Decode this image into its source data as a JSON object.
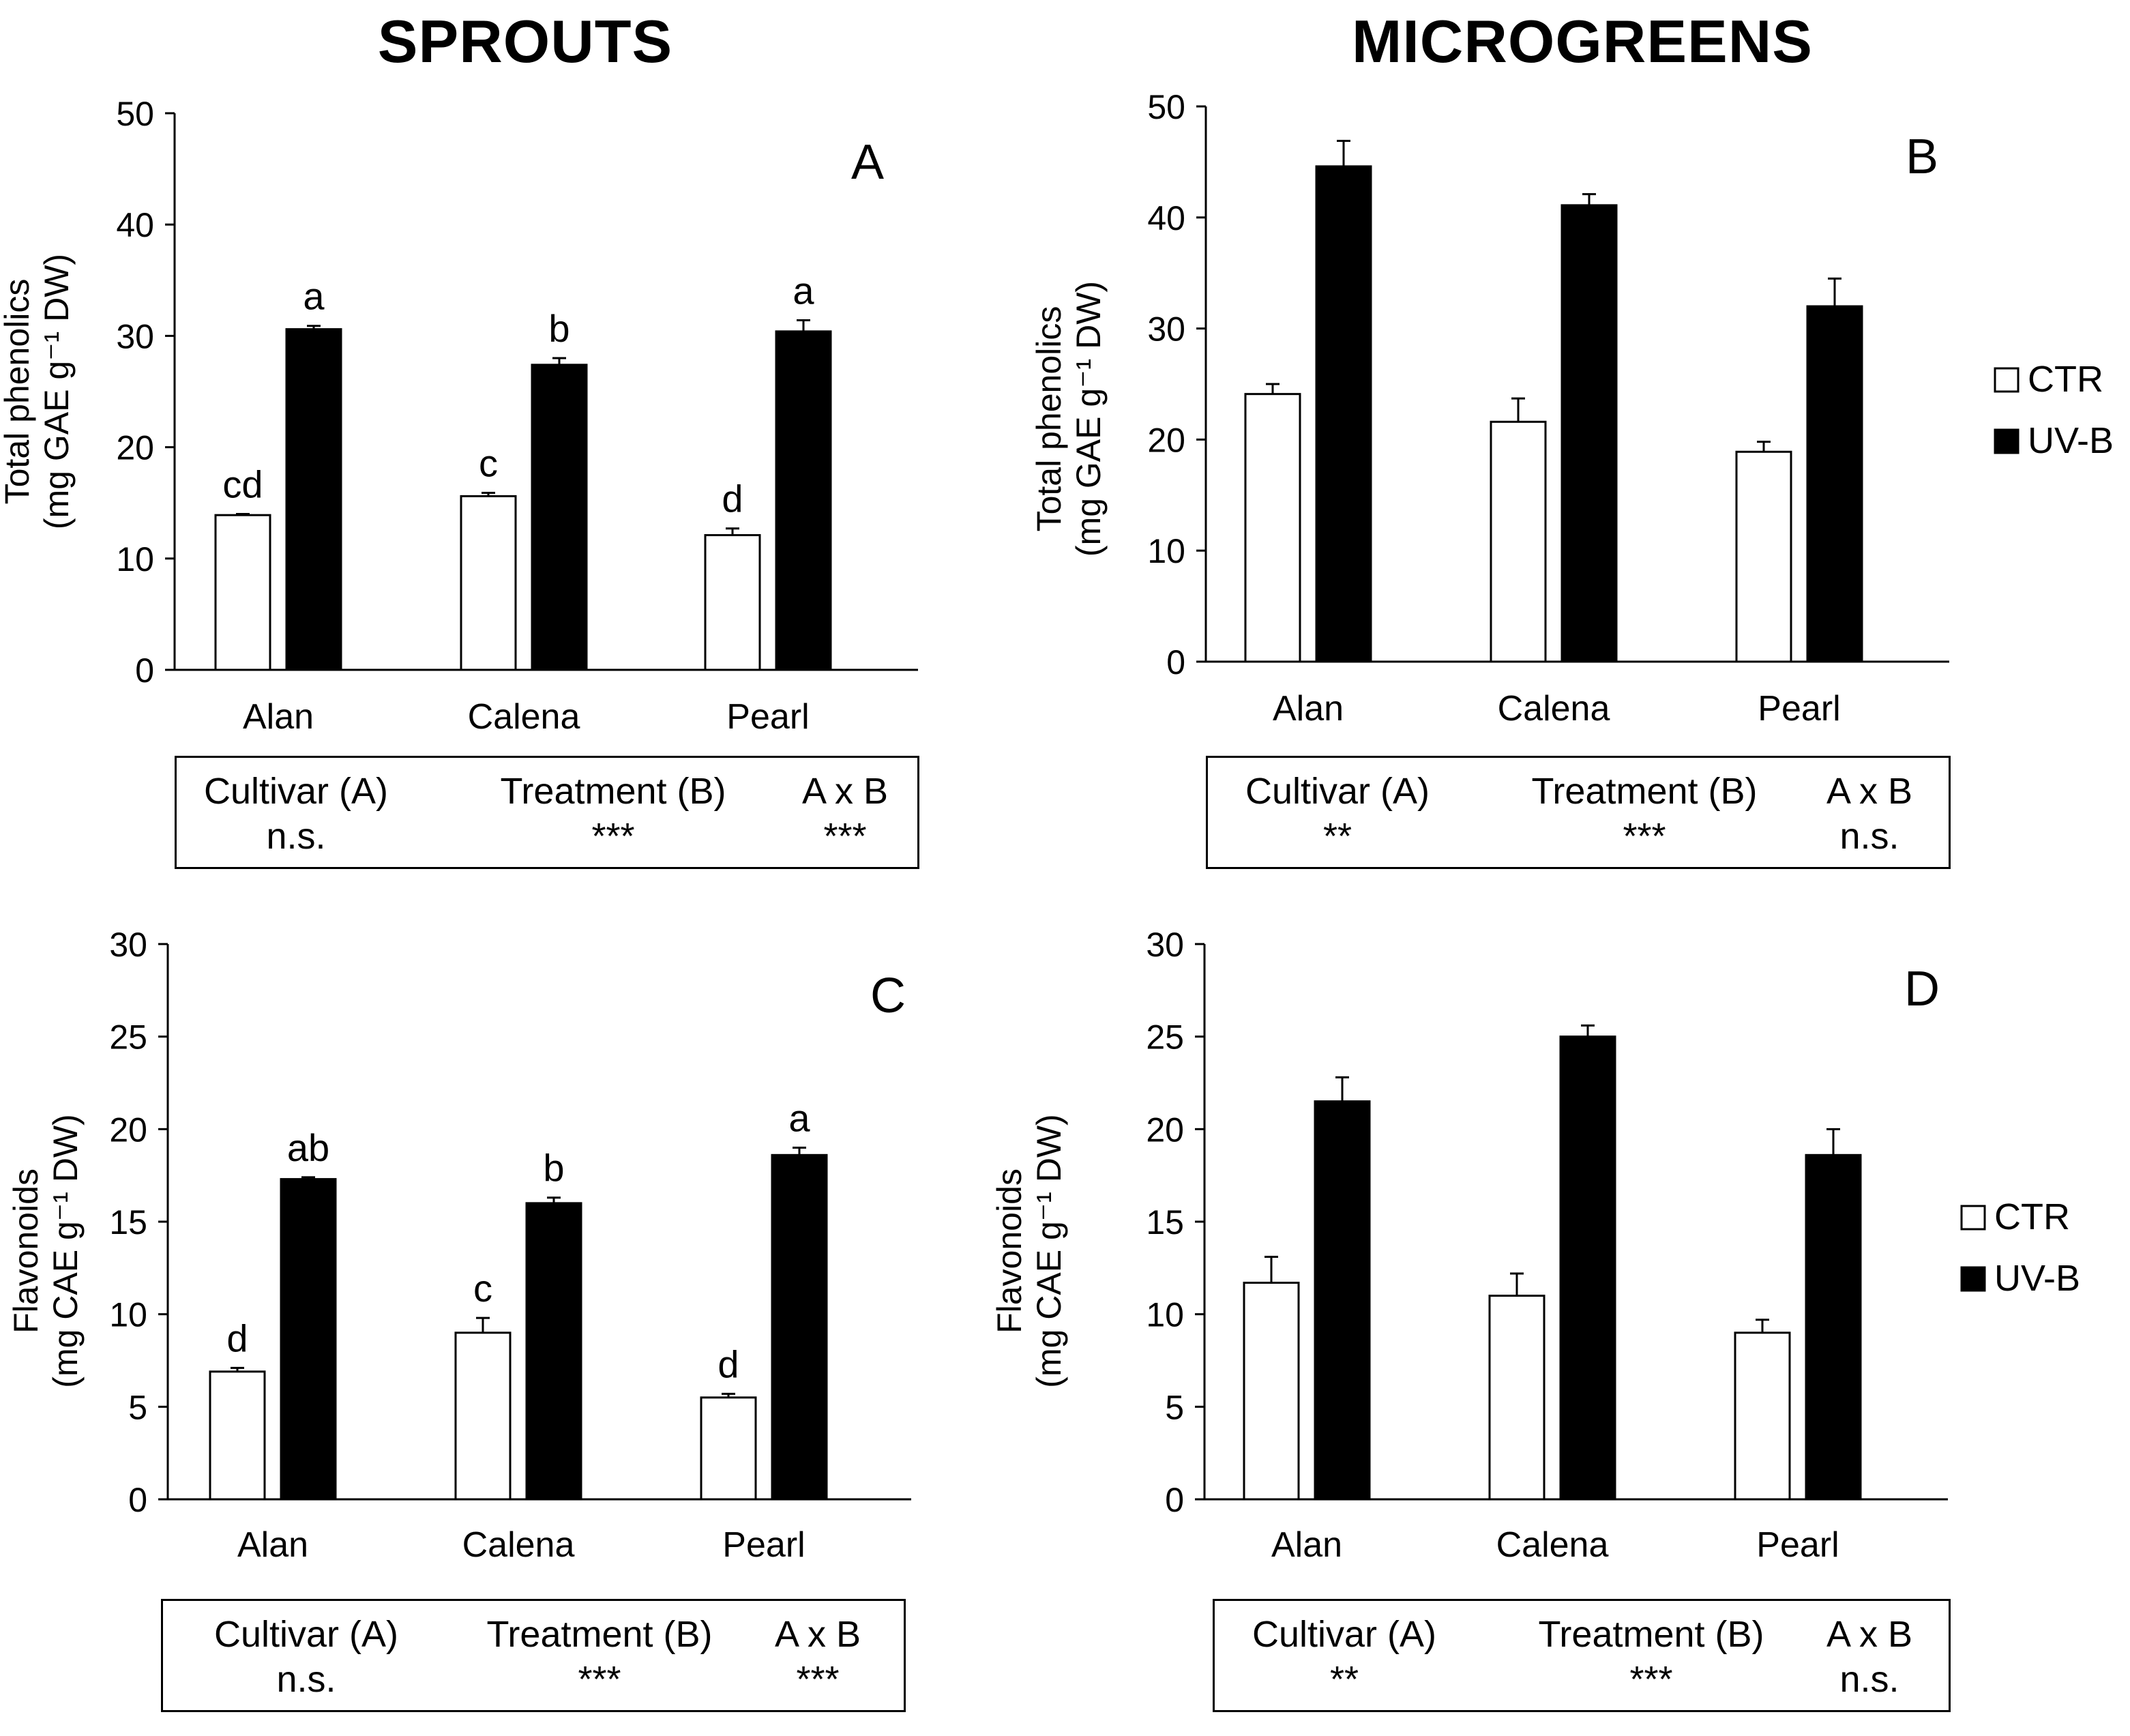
{
  "column_titles": {
    "left": "SPROUTS",
    "right": "MICROGREENS"
  },
  "legend": {
    "items": [
      "CTR",
      "UV-B"
    ],
    "colors": [
      "#ffffff",
      "#000000"
    ]
  },
  "chart_data": [
    {
      "id": "A",
      "panel": "A",
      "type": "bar",
      "categories": [
        "Alan",
        "Calena",
        "Pearl"
      ],
      "series": [
        {
          "name": "CTR",
          "color": "#ffffff",
          "values": [
            13.9,
            15.6,
            12.1
          ],
          "errors": [
            0.1,
            0.3,
            0.6
          ],
          "labels": [
            "cd",
            "c",
            "d"
          ]
        },
        {
          "name": "UV-B",
          "color": "#000000",
          "values": [
            30.6,
            27.4,
            30.4
          ],
          "errors": [
            0.3,
            0.6,
            1.0
          ],
          "labels": [
            "a",
            "b",
            "a"
          ]
        }
      ],
      "ylabel_line1": "Total phenolics",
      "ylabel_line2": "(mg GAE g⁻¹ DW)",
      "ylim": [
        0,
        50
      ],
      "yticks": [
        0,
        10,
        20,
        30,
        40,
        50
      ],
      "stats": {
        "cultivar": {
          "label": "Cultivar (A)",
          "value": "n.s."
        },
        "treatment": {
          "label": "Treatment (B)",
          "value": "***"
        },
        "interaction": {
          "label": "A x B",
          "value": "***"
        }
      }
    },
    {
      "id": "B",
      "panel": "B",
      "type": "bar",
      "categories": [
        "Alan",
        "Calena",
        "Pearl"
      ],
      "series": [
        {
          "name": "CTR",
          "color": "#ffffff",
          "values": [
            24.1,
            21.6,
            18.9
          ],
          "errors": [
            0.9,
            2.1,
            0.9
          ],
          "labels": []
        },
        {
          "name": "UV-B",
          "color": "#000000",
          "values": [
            44.6,
            41.1,
            32.0
          ],
          "errors": [
            2.3,
            1.0,
            2.5
          ],
          "labels": []
        }
      ],
      "ylabel_line1": "Total phenolics",
      "ylabel_line2": "(mg GAE g⁻¹ DW)",
      "ylim": [
        0,
        50
      ],
      "yticks": [
        0,
        10,
        20,
        30,
        40,
        50
      ],
      "stats": {
        "cultivar": {
          "label": "Cultivar (A)",
          "value": "**"
        },
        "treatment": {
          "label": "Treatment (B)",
          "value": "***"
        },
        "interaction": {
          "label": "A x B",
          "value": "n.s."
        }
      }
    },
    {
      "id": "C",
      "panel": "C",
      "type": "bar",
      "categories": [
        "Alan",
        "Calena",
        "Pearl"
      ],
      "series": [
        {
          "name": "CTR",
          "color": "#ffffff",
          "values": [
            6.9,
            9.0,
            5.5
          ],
          "errors": [
            0.2,
            0.8,
            0.2
          ],
          "labels": [
            "d",
            "c",
            "d"
          ]
        },
        {
          "name": "UV-B",
          "color": "#000000",
          "values": [
            17.3,
            16.0,
            18.6
          ],
          "errors": [
            0.1,
            0.3,
            0.4
          ],
          "labels": [
            "ab",
            "b",
            "a"
          ]
        }
      ],
      "ylabel_line1": "Flavonoids",
      "ylabel_line2": "(mg CAE g⁻¹ DW)",
      "ylim": [
        0,
        30
      ],
      "yticks": [
        0,
        5,
        10,
        15,
        20,
        25,
        30
      ],
      "stats": {
        "cultivar": {
          "label": "Cultivar (A)",
          "value": "n.s."
        },
        "treatment": {
          "label": "Treatment (B)",
          "value": "***"
        },
        "interaction": {
          "label": "A x B",
          "value": "***"
        }
      }
    },
    {
      "id": "D",
      "panel": "D",
      "type": "bar",
      "categories": [
        "Alan",
        "Calena",
        "Pearl"
      ],
      "series": [
        {
          "name": "CTR",
          "color": "#ffffff",
          "values": [
            11.7,
            11.0,
            9.0
          ],
          "errors": [
            1.4,
            1.2,
            0.7
          ],
          "labels": []
        },
        {
          "name": "UV-B",
          "color": "#000000",
          "values": [
            21.5,
            25.0,
            18.6
          ],
          "errors": [
            1.3,
            0.6,
            1.4
          ],
          "labels": []
        }
      ],
      "ylabel_line1": "Flavonoids",
      "ylabel_line2": "(mg CAE g⁻¹ DW)",
      "ylim": [
        0,
        30
      ],
      "yticks": [
        0,
        5,
        10,
        15,
        20,
        25,
        30
      ],
      "stats": {
        "cultivar": {
          "label": "Cultivar (A)",
          "value": "**"
        },
        "treatment": {
          "label": "Treatment (B)",
          "value": "***"
        },
        "interaction": {
          "label": "A x B",
          "value": "n.s."
        }
      }
    }
  ]
}
